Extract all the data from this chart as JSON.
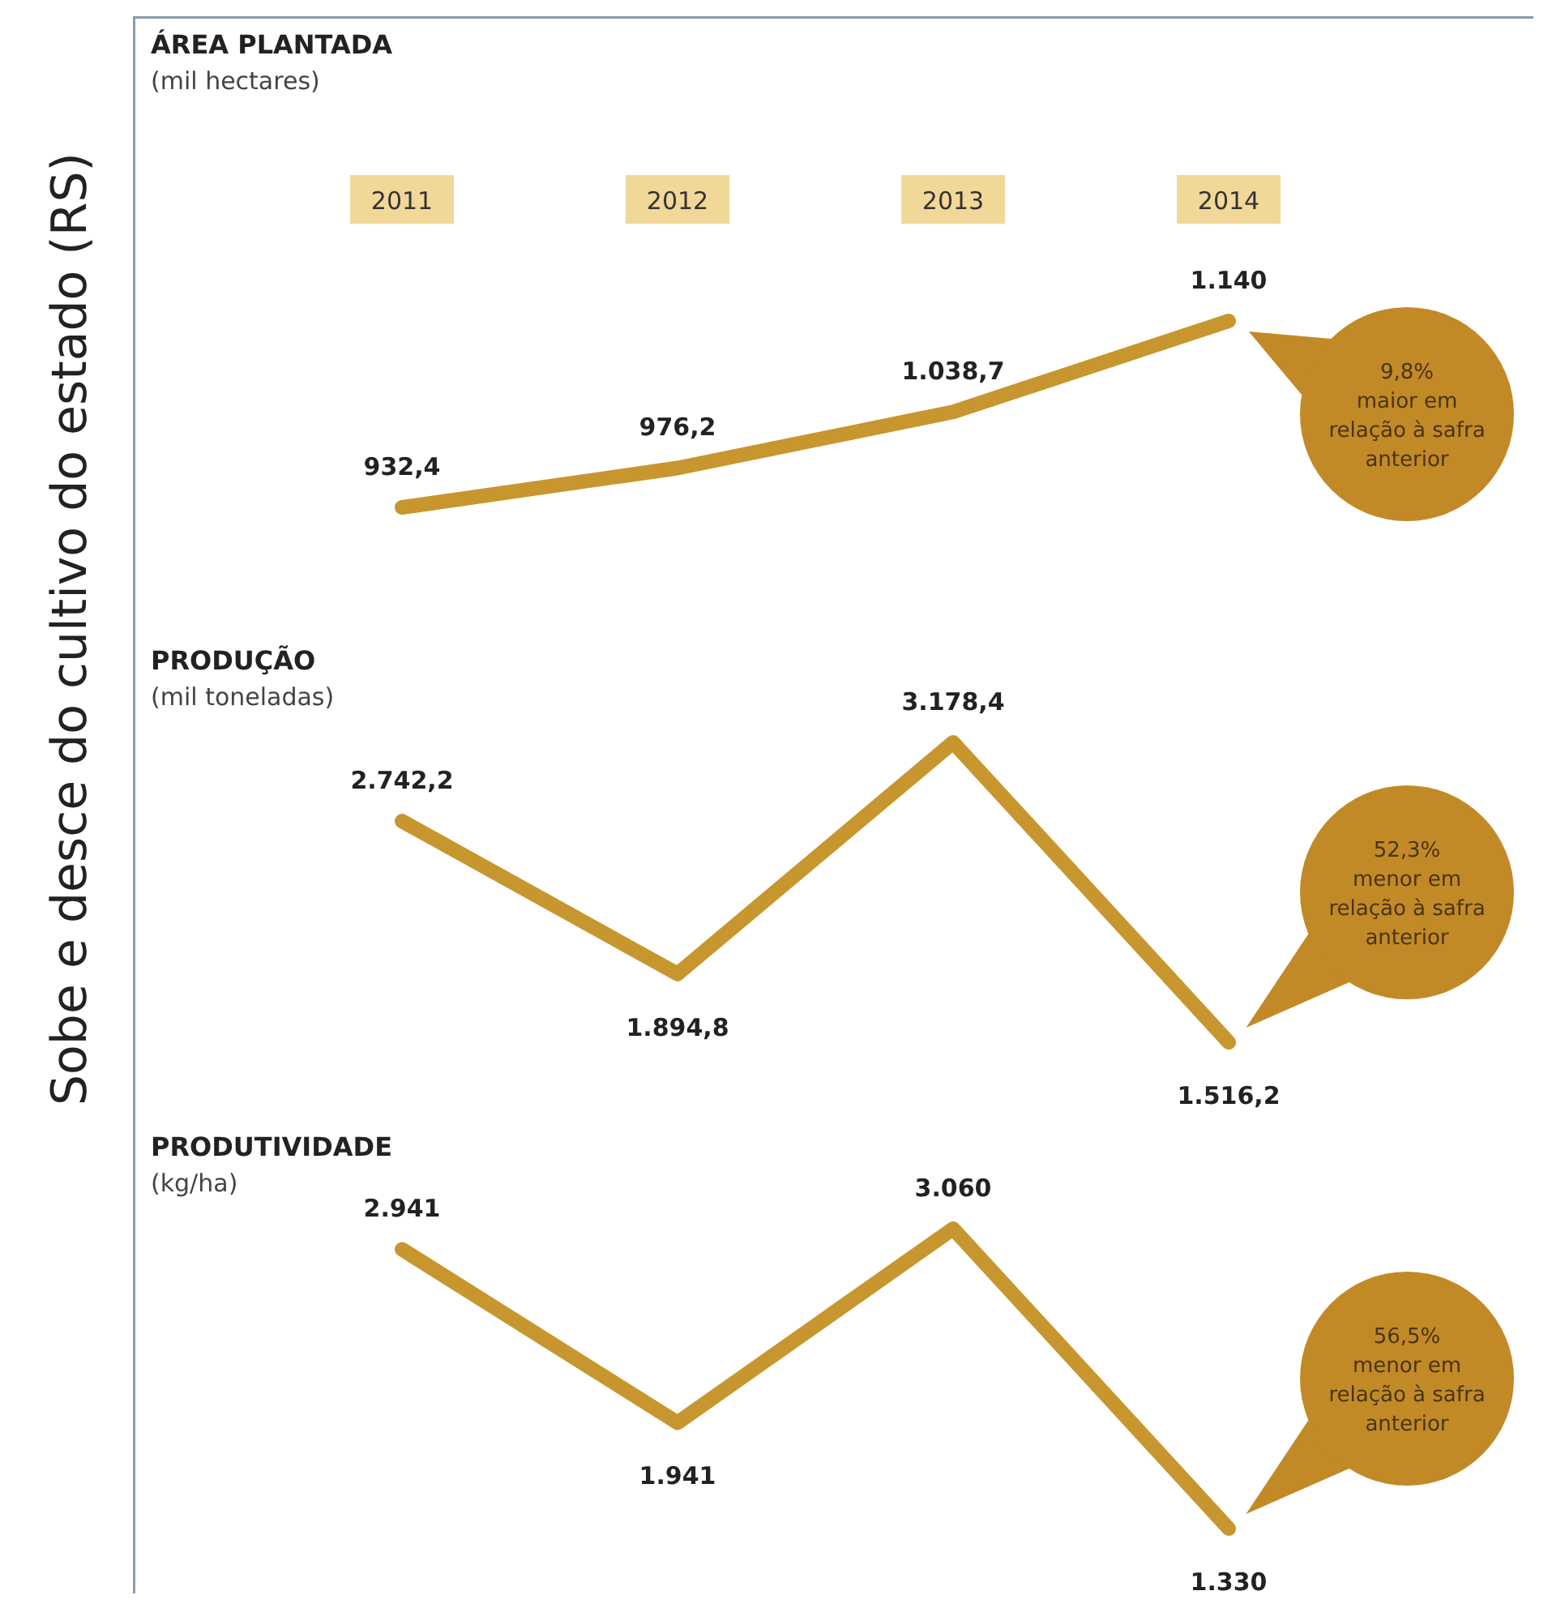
{
  "chart_data": [
    {
      "type": "line",
      "title": "ÁREA PLANTADA",
      "subtitle": "(mil hectares)",
      "categories": [
        "2011",
        "2012",
        "2013",
        "2014"
      ],
      "tick_labels": "x",
      "series": [
        {
          "color": "#c8962e",
          "values": [
            932.4,
            976.2,
            1038.7,
            1140
          ],
          "value_labels": [
            "932,4",
            "976,2",
            "1.038,7",
            "1.140"
          ]
        }
      ],
      "annotations": [
        "Sobe e desce do cultivo do estado (RS)",
        "9,8% maior em relação à safra anterior"
      ]
    },
    {
      "type": "line",
      "title": "PRODUÇÃO",
      "subtitle": "(mil toneladas)",
      "categories": [
        null,
        null,
        null,
        null
      ],
      "series": [
        {
          "color": "#c8962e",
          "values": [
            2742.2,
            1894.8,
            3178.4,
            1516.2
          ],
          "value_labels": [
            "2.742,2",
            "1.894,8",
            "3.178,4",
            "1.516,2"
          ]
        }
      ],
      "annotations": [
        "52,3% menor em relação à safra anterior"
      ]
    },
    {
      "type": "line",
      "title": "PRODUTIVIDADE",
      "subtitle": "(kg/ha)",
      "categories": [
        null,
        null,
        null,
        null
      ],
      "series": [
        {
          "color": "#c8962e",
          "values": [
            2941,
            1941,
            3060,
            1330
          ],
          "value_labels": [
            "2.941",
            "1.941",
            "3.060",
            "1.330"
          ]
        }
      ],
      "annotations": [
        "56,5% menor em relação à safra anterior"
      ]
    }
  ]
}
